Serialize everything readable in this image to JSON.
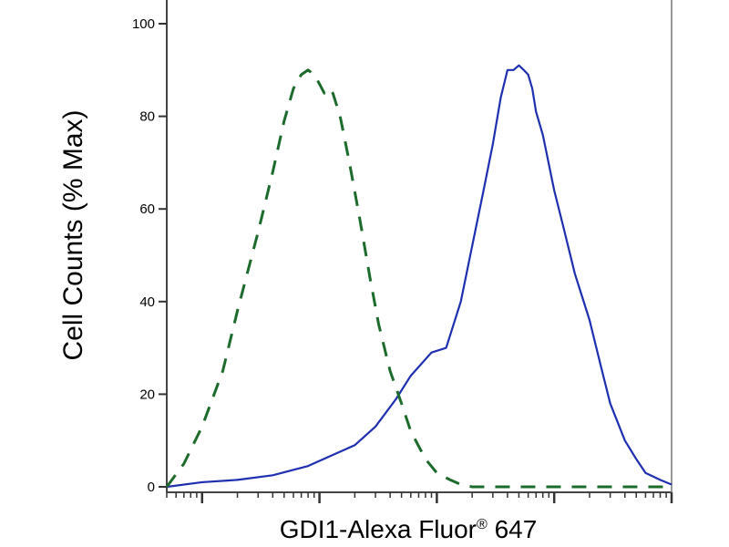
{
  "chart_data": {
    "type": "line",
    "xlabel": "GDI1-Alexa Fluor",
    "xlabel_superscript": "®",
    "xlabel_suffix": " 647",
    "ylabel": "Cell Counts (% Max)",
    "x_scale": "log",
    "xlim": [
      0.05,
      1000
    ],
    "ylim": [
      0,
      100
    ],
    "y_ticks": [
      0,
      20,
      40,
      60,
      80,
      100
    ],
    "y_tick_labels": [
      "0",
      "20",
      "40",
      "60",
      "80",
      "100"
    ],
    "grid": false,
    "legend": "none",
    "series": [
      {
        "color": "#1e2fb0",
        "style": "solid",
        "x": [
          0.05,
          0.1,
          0.2,
          0.4,
          0.8,
          1.2,
          2,
          3,
          4.5,
          6,
          9,
          12,
          16,
          20,
          25,
          30,
          35,
          40,
          45,
          50,
          55,
          60,
          65,
          70,
          80,
          100,
          120,
          150,
          200,
          250,
          300,
          400,
          500,
          600,
          800,
          1000
        ],
        "y": [
          0,
          1,
          1.5,
          2.5,
          4.5,
          6.5,
          9,
          13,
          19,
          24,
          29,
          30,
          40,
          52,
          64,
          74,
          84,
          90,
          90,
          91,
          90,
          89,
          86,
          81,
          76,
          64,
          56,
          46,
          36,
          26,
          18,
          10,
          6,
          3,
          1.5,
          0.5
        ]
      },
      {
        "color": "#1c6b2c",
        "style": "dashed",
        "x": [
          0.05,
          0.07,
          0.1,
          0.15,
          0.2,
          0.3,
          0.4,
          0.5,
          0.6,
          0.7,
          0.8,
          0.9,
          1.0,
          1.1,
          1.2,
          1.3,
          1.5,
          1.8,
          2.2,
          2.7,
          3.2,
          4,
          5,
          6,
          8,
          10,
          13,
          16,
          20,
          30,
          50,
          100,
          1000
        ],
        "y": [
          0,
          5,
          13,
          25,
          38,
          55,
          68,
          79,
          86,
          89,
          90,
          89,
          87,
          85,
          86,
          85,
          80,
          70,
          58,
          45,
          35,
          25,
          18,
          12,
          6,
          3,
          1.5,
          0.5,
          0,
          0,
          0,
          0,
          0
        ]
      }
    ]
  }
}
